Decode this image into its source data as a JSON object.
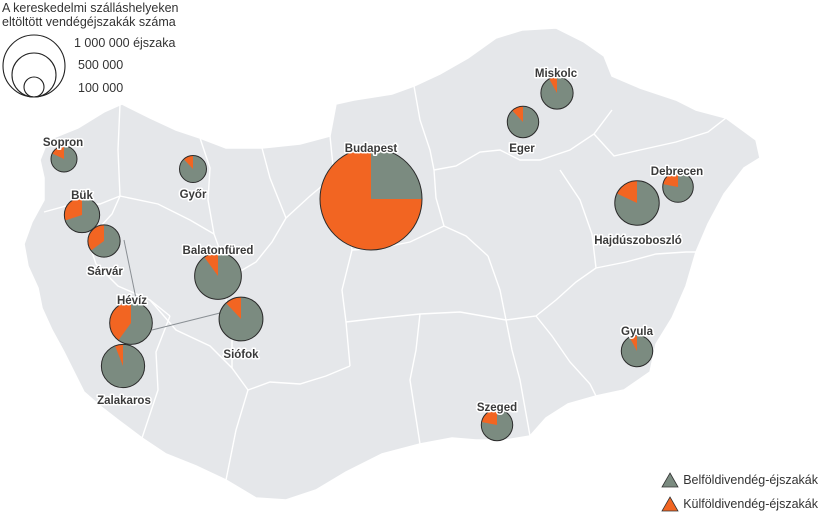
{
  "colors": {
    "domestic": "#7b8b80",
    "foreign": "#f26522",
    "land": "#e5e7ea",
    "border": "#ffffff",
    "outline": "#333333"
  },
  "legend": {
    "size_title_line1": "A kereskedelmi szálláshelyeken",
    "size_title_line2": "eltöltött vendégéjszakák száma",
    "sizes": [
      {
        "label": "1 000 000 éjszaka",
        "value": 1000000
      },
      {
        "label": "500 000",
        "value": 500000
      },
      {
        "label": "100 000",
        "value": 100000
      }
    ],
    "categories": [
      {
        "label": "Belföldivendég-éjszakák",
        "color_key": "domestic",
        "icon": "triangle-icon"
      },
      {
        "label": "Külföldivendég-éjszakák",
        "color_key": "foreign",
        "icon": "triangle-icon"
      }
    ]
  },
  "cities": [
    {
      "name": "Budapest",
      "total": 1000000,
      "foreign_share": 0.75
    },
    {
      "name": "Miskolc",
      "total": 100000,
      "foreign_share": 0.08
    },
    {
      "name": "Eger",
      "total": 95000,
      "foreign_share": 0.12
    },
    {
      "name": "Debrecen",
      "total": 90000,
      "foreign_share": 0.22
    },
    {
      "name": "Hajdúszoboszló",
      "total": 190000,
      "foreign_share": 0.18
    },
    {
      "name": "Sopron",
      "total": 65000,
      "foreign_share": 0.18
    },
    {
      "name": "Győr",
      "total": 70000,
      "foreign_share": 0.12
    },
    {
      "name": "Bük",
      "total": 120000,
      "foreign_share": 0.3
    },
    {
      "name": "Sárvár",
      "total": 100000,
      "foreign_share": 0.35
    },
    {
      "name": "Balatonfüred",
      "total": 210000,
      "foreign_share": 0.1
    },
    {
      "name": "Hévíz",
      "total": 175000,
      "foreign_share": 0.4
    },
    {
      "name": "Siófok",
      "total": 185000,
      "foreign_share": 0.12
    },
    {
      "name": "Zalakaros",
      "total": 180000,
      "foreign_share": 0.06
    },
    {
      "name": "Gyula",
      "total": 95000,
      "foreign_share": 0.08
    },
    {
      "name": "Szeged",
      "total": 95000,
      "foreign_share": 0.22
    }
  ]
}
